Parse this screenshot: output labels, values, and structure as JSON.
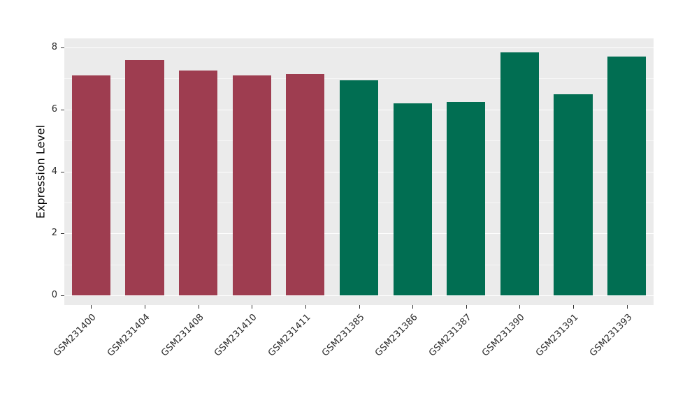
{
  "chart_data": {
    "type": "bar",
    "title": "",
    "xlabel": "",
    "ylabel": "Expression Level",
    "categories": [
      "GSM231400",
      "GSM231404",
      "GSM231408",
      "GSM231410",
      "GSM231411",
      "GSM231385",
      "GSM231386",
      "GSM231387",
      "GSM231390",
      "GSM231391",
      "GSM231393"
    ],
    "values": [
      7.1,
      7.6,
      7.25,
      7.1,
      7.15,
      6.95,
      6.2,
      6.25,
      7.85,
      6.5,
      7.7
    ],
    "bar_colors": [
      "#9e3d50",
      "#9e3d50",
      "#9e3d50",
      "#9e3d50",
      "#9e3d50",
      "#016e52",
      "#016e52",
      "#016e52",
      "#016e52",
      "#016e52",
      "#016e52"
    ],
    "groups": [
      {
        "name": "red-group",
        "color": "#9e3d50",
        "categories": [
          "GSM231400",
          "GSM231404",
          "GSM231408",
          "GSM231410",
          "GSM231411"
        ]
      },
      {
        "name": "green-group",
        "color": "#016e52",
        "categories": [
          "GSM231385",
          "GSM231386",
          "GSM231387",
          "GSM231390",
          "GSM231391",
          "GSM231393"
        ]
      }
    ],
    "ylim": [
      0,
      8
    ],
    "yticks": [
      0,
      2,
      4,
      6,
      8
    ],
    "minor_ticks": [
      1,
      3,
      5,
      7
    ],
    "grid": true,
    "legend_position": "none",
    "panel_bg": "#ebebeb",
    "grid_color": "#ffffff"
  }
}
